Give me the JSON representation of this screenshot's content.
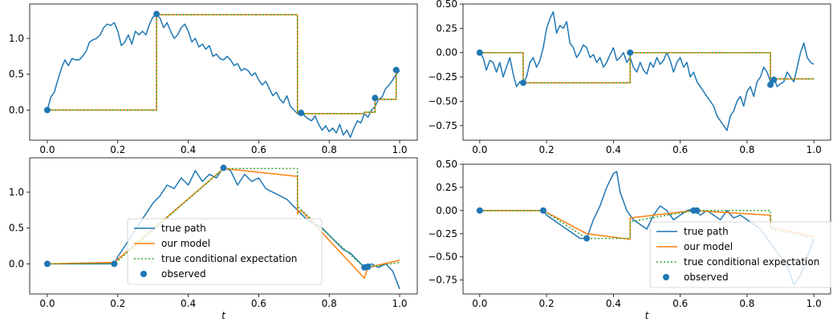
{
  "colors": {
    "true_path": "#1f77b4",
    "model": "#ff7f0e",
    "cond_exp": "#2ca02c",
    "observed": "#1f77b4"
  },
  "chart_data": [
    {
      "type": "line",
      "xlabel": "",
      "xlim": [
        -0.05,
        1.05
      ],
      "ylim": [
        -0.42,
        1.48
      ],
      "xticks": [
        "0.0",
        "0.2",
        "0.4",
        "0.6",
        "0.8",
        "1.0"
      ],
      "xtick_values": [
        0,
        0.2,
        0.4,
        0.6,
        0.8,
        1.0
      ],
      "yticks": [
        "0.0",
        "0.5",
        "1.0"
      ],
      "ytick_values": [
        0,
        0.5,
        1.0
      ],
      "legend": null,
      "series": [
        {
          "name": "true path",
          "x": [
            0,
            0.01,
            0.02,
            0.03,
            0.04,
            0.05,
            0.06,
            0.07,
            0.08,
            0.09,
            0.1,
            0.11,
            0.12,
            0.13,
            0.14,
            0.15,
            0.16,
            0.17,
            0.18,
            0.19,
            0.2,
            0.21,
            0.22,
            0.23,
            0.24,
            0.25,
            0.26,
            0.27,
            0.28,
            0.29,
            0.3,
            0.31,
            0.32,
            0.33,
            0.34,
            0.35,
            0.36,
            0.37,
            0.38,
            0.39,
            0.4,
            0.41,
            0.42,
            0.43,
            0.44,
            0.45,
            0.46,
            0.47,
            0.48,
            0.49,
            0.5,
            0.51,
            0.52,
            0.53,
            0.54,
            0.55,
            0.56,
            0.57,
            0.58,
            0.59,
            0.6,
            0.61,
            0.62,
            0.63,
            0.64,
            0.65,
            0.66,
            0.67,
            0.68,
            0.69,
            0.7,
            0.71,
            0.72,
            0.73,
            0.74,
            0.75,
            0.76,
            0.77,
            0.78,
            0.79,
            0.8,
            0.81,
            0.82,
            0.83,
            0.84,
            0.85,
            0.86,
            0.87,
            0.88,
            0.89,
            0.9,
            0.91,
            0.92,
            0.93,
            0.94,
            0.95,
            0.96,
            0.97,
            0.98,
            0.99,
            1.0
          ],
          "y": [
            0,
            0.18,
            0.25,
            0.42,
            0.58,
            0.7,
            0.62,
            0.72,
            0.7,
            0.7,
            0.75,
            0.82,
            0.95,
            0.98,
            1.0,
            1.05,
            1.15,
            1.2,
            1.18,
            1.22,
            1.1,
            0.9,
            0.95,
            1.05,
            0.92,
            1.1,
            1.05,
            1.1,
            1.05,
            1.2,
            1.3,
            1.33,
            1.28,
            1.15,
            1.22,
            1.1,
            1.0,
            1.05,
            1.15,
            1.2,
            1.1,
            0.95,
            1.0,
            0.88,
            0.92,
            0.85,
            0.9,
            0.75,
            0.78,
            0.72,
            0.7,
            0.75,
            0.7,
            0.62,
            0.65,
            0.55,
            0.58,
            0.55,
            0.48,
            0.52,
            0.42,
            0.35,
            0.4,
            0.3,
            0.2,
            0.25,
            0.15,
            0.1,
            0.2,
            0.05,
            0.0,
            -0.05,
            0.0,
            -0.08,
            -0.12,
            -0.15,
            -0.08,
            -0.2,
            -0.28,
            -0.22,
            -0.3,
            -0.25,
            -0.32,
            -0.2,
            -0.35,
            -0.28,
            -0.38,
            -0.25,
            -0.15,
            -0.18,
            -0.05,
            -0.1,
            0.0,
            0.05,
            0.15,
            0.18,
            0.3,
            0.35,
            0.42,
            0.5,
            0.55
          ]
        },
        {
          "name": "our model",
          "x": [
            0,
            0.31,
            0.31,
            0.71,
            0.71,
            0.9,
            0.9,
            0.93,
            0.93,
            0.99,
            0.99
          ],
          "y": [
            0,
            0,
            1.33,
            1.33,
            -0.05,
            -0.05,
            -0.03,
            -0.03,
            0.15,
            0.15,
            0.56
          ]
        },
        {
          "name": "true conditional expectation",
          "x": [
            0,
            0.31,
            0.31,
            0.71,
            0.71,
            0.9,
            0.9,
            0.93,
            0.93,
            0.99,
            0.99
          ],
          "y": [
            0,
            0,
            1.33,
            1.33,
            -0.05,
            -0.05,
            -0.03,
            -0.03,
            0.15,
            0.15,
            0.56
          ]
        },
        {
          "name": "observed",
          "x": [
            0,
            0.31,
            0.72,
            0.93,
            0.99
          ],
          "y": [
            0,
            1.34,
            -0.04,
            0.17,
            0.56
          ]
        }
      ]
    },
    {
      "type": "line",
      "xlabel": "",
      "xlim": [
        -0.05,
        1.05
      ],
      "ylim": [
        -0.9,
        0.5
      ],
      "xticks": [
        "0.0",
        "0.2",
        "0.4",
        "0.6",
        "0.8",
        "1.0"
      ],
      "xtick_values": [
        0,
        0.2,
        0.4,
        0.6,
        0.8,
        1.0
      ],
      "yticks": [
        "0.50",
        "0.25",
        "0.00",
        "−0.25",
        "−0.50",
        "−0.75"
      ],
      "ytick_values": [
        0.5,
        0.25,
        0,
        -0.25,
        -0.5,
        -0.75
      ],
      "legend": null,
      "series": [
        {
          "name": "true path",
          "x": [
            0,
            0.01,
            0.02,
            0.03,
            0.04,
            0.05,
            0.06,
            0.07,
            0.08,
            0.09,
            0.1,
            0.11,
            0.12,
            0.13,
            0.14,
            0.15,
            0.16,
            0.17,
            0.18,
            0.19,
            0.2,
            0.21,
            0.22,
            0.23,
            0.24,
            0.25,
            0.26,
            0.27,
            0.28,
            0.29,
            0.3,
            0.31,
            0.32,
            0.33,
            0.34,
            0.35,
            0.36,
            0.37,
            0.38,
            0.39,
            0.4,
            0.41,
            0.42,
            0.43,
            0.44,
            0.45,
            0.46,
            0.47,
            0.48,
            0.49,
            0.5,
            0.51,
            0.52,
            0.53,
            0.54,
            0.55,
            0.56,
            0.57,
            0.58,
            0.59,
            0.6,
            0.61,
            0.62,
            0.63,
            0.64,
            0.65,
            0.66,
            0.67,
            0.68,
            0.69,
            0.7,
            0.71,
            0.72,
            0.73,
            0.74,
            0.75,
            0.76,
            0.77,
            0.78,
            0.79,
            0.8,
            0.81,
            0.82,
            0.83,
            0.84,
            0.85,
            0.86,
            0.87,
            0.88,
            0.89,
            0.9,
            0.91,
            0.92,
            0.93,
            0.94,
            0.95,
            0.96,
            0.97,
            0.98,
            0.99,
            1.0
          ],
          "y": [
            0,
            -0.05,
            -0.18,
            -0.08,
            -0.1,
            -0.2,
            -0.1,
            -0.25,
            -0.15,
            -0.05,
            -0.22,
            -0.35,
            -0.3,
            -0.32,
            -0.25,
            -0.1,
            -0.05,
            -0.15,
            -0.08,
            0.05,
            0.25,
            0.35,
            0.42,
            0.2,
            0.28,
            0.25,
            0.32,
            0.1,
            0.05,
            -0.05,
            0.0,
            0.08,
            0.05,
            -0.05,
            -0.02,
            -0.1,
            -0.05,
            -0.15,
            -0.1,
            -0.02,
            0.05,
            -0.08,
            -0.05,
            0.0,
            -0.1,
            -0.05,
            -0.15,
            -0.2,
            -0.1,
            -0.18,
            -0.22,
            -0.1,
            -0.15,
            -0.05,
            -0.12,
            -0.08,
            0.0,
            -0.08,
            -0.2,
            -0.1,
            -0.05,
            -0.15,
            -0.1,
            -0.25,
            -0.2,
            -0.3,
            -0.35,
            -0.4,
            -0.45,
            -0.5,
            -0.55,
            -0.65,
            -0.7,
            -0.75,
            -0.8,
            -0.65,
            -0.6,
            -0.5,
            -0.45,
            -0.55,
            -0.4,
            -0.35,
            -0.45,
            -0.3,
            -0.25,
            -0.15,
            -0.2,
            -0.3,
            -0.25,
            -0.35,
            -0.32,
            -0.3,
            -0.2,
            -0.25,
            -0.3,
            -0.15,
            0.0,
            0.1,
            -0.05,
            -0.1,
            -0.12
          ]
        },
        {
          "name": "our model",
          "x": [
            0,
            0.13,
            0.13,
            0.45,
            0.45,
            0.87,
            0.87,
            1.0
          ],
          "y": [
            0,
            0,
            -0.31,
            -0.31,
            0.0,
            0.0,
            -0.27,
            -0.27
          ]
        },
        {
          "name": "true conditional expectation",
          "x": [
            0,
            0.13,
            0.13,
            0.45,
            0.45,
            0.87,
            0.87,
            1.0
          ],
          "y": [
            0,
            0,
            -0.31,
            -0.31,
            0.0,
            0.0,
            -0.27,
            -0.27
          ]
        },
        {
          "name": "observed",
          "x": [
            0,
            0.13,
            0.45,
            0.87,
            0.88
          ],
          "y": [
            0,
            -0.31,
            0.0,
            -0.33,
            -0.28
          ]
        }
      ]
    },
    {
      "type": "line",
      "xlabel": "t",
      "xlim": [
        -0.05,
        1.05
      ],
      "ylim": [
        -0.42,
        1.48
      ],
      "xticks": [
        "0.0",
        "0.2",
        "0.4",
        "0.6",
        "0.8",
        "1.0"
      ],
      "xtick_values": [
        0,
        0.2,
        0.4,
        0.6,
        0.8,
        1.0
      ],
      "yticks": [
        "0.0",
        "0.5",
        "1.0"
      ],
      "ytick_values": [
        0,
        0.5,
        1.0
      ],
      "legend": "center",
      "legend_entries": [
        "true path",
        "our model",
        "true conditional expectation",
        "observed"
      ],
      "series": [
        {
          "name": "true path",
          "x": [
            0,
            0.19,
            0.2,
            0.22,
            0.24,
            0.26,
            0.28,
            0.3,
            0.32,
            0.34,
            0.36,
            0.38,
            0.4,
            0.42,
            0.44,
            0.46,
            0.48,
            0.5,
            0.52,
            0.54,
            0.56,
            0.58,
            0.6,
            0.62,
            0.64,
            0.66,
            0.68,
            0.7,
            0.72,
            0.74,
            0.76,
            0.78,
            0.8,
            0.82,
            0.84,
            0.86,
            0.88,
            0.9,
            0.92,
            0.94,
            0.96,
            0.98,
            1.0
          ],
          "y": [
            0,
            0,
            0.1,
            0.25,
            0.4,
            0.55,
            0.7,
            0.85,
            0.95,
            1.1,
            1.05,
            1.2,
            1.1,
            1.3,
            1.15,
            1.25,
            1.2,
            1.35,
            1.3,
            1.1,
            1.25,
            1.15,
            1.2,
            1.05,
            1.0,
            0.95,
            0.9,
            0.8,
            0.7,
            0.6,
            0.55,
            0.5,
            0.4,
            0.3,
            0.2,
            0.15,
            0.05,
            -0.05,
            0.0,
            -0.05,
            0.0,
            -0.1,
            -0.35
          ]
        },
        {
          "name": "our model",
          "x": [
            0,
            0.19,
            0.5,
            0.71,
            0.71,
            0.72,
            0.9,
            0.91,
            1.0
          ],
          "y": [
            0,
            0.02,
            1.33,
            1.22,
            0.7,
            0.75,
            -0.2,
            -0.05,
            0.05
          ]
        },
        {
          "name": "true conditional expectation",
          "x": [
            0,
            0.19,
            0.5,
            0.71,
            0.71,
            0.9,
            0.91,
            1.0
          ],
          "y": [
            0,
            0,
            1.33,
            1.33,
            0.8,
            -0.05,
            -0.05,
            0.02
          ]
        },
        {
          "name": "observed",
          "x": [
            0,
            0.19,
            0.5,
            0.9,
            0.91
          ],
          "y": [
            0,
            0,
            1.34,
            -0.05,
            -0.04
          ]
        }
      ]
    },
    {
      "type": "line",
      "xlabel": "t",
      "xlim": [
        -0.05,
        1.05
      ],
      "ylim": [
        -0.9,
        0.5
      ],
      "xticks": [
        "0.0",
        "0.2",
        "0.4",
        "0.6",
        "0.8",
        "1.0"
      ],
      "xtick_values": [
        0,
        0.2,
        0.4,
        0.6,
        0.8,
        1.0
      ],
      "yticks": [
        "0.50",
        "0.25",
        "0.00",
        "−0.25",
        "−0.50",
        "−0.75"
      ],
      "ytick_values": [
        0.5,
        0.25,
        0,
        -0.25,
        -0.5,
        -0.75
      ],
      "legend": "lower right",
      "legend_entries": [
        "true path",
        "our model",
        "true conditional expectation",
        "observed"
      ],
      "series": [
        {
          "name": "true path",
          "x": [
            0,
            0.19,
            0.2,
            0.22,
            0.24,
            0.26,
            0.28,
            0.3,
            0.32,
            0.34,
            0.36,
            0.38,
            0.4,
            0.41,
            0.42,
            0.44,
            0.46,
            0.48,
            0.5,
            0.52,
            0.54,
            0.56,
            0.58,
            0.6,
            0.62,
            0.64,
            0.66,
            0.68,
            0.7,
            0.72,
            0.74,
            0.76,
            0.78,
            0.8,
            0.82,
            0.84,
            0.86,
            0.88,
            0.9,
            0.92,
            0.94,
            0.96,
            0.98,
            1.0
          ],
          "y": [
            0,
            0,
            -0.05,
            -0.1,
            -0.15,
            -0.2,
            -0.25,
            -0.3,
            -0.3,
            -0.1,
            0.05,
            0.25,
            0.4,
            0.42,
            0.2,
            0.0,
            -0.1,
            -0.15,
            -0.2,
            -0.05,
            0.05,
            0.0,
            -0.1,
            -0.05,
            0.0,
            0.02,
            -0.05,
            0.0,
            -0.05,
            -0.1,
            0.0,
            -0.08,
            -0.05,
            -0.1,
            -0.15,
            -0.2,
            -0.3,
            -0.4,
            -0.5,
            -0.6,
            -0.8,
            -0.7,
            -0.5,
            -0.3
          ]
        },
        {
          "name": "our model",
          "x": [
            0,
            0.19,
            0.32,
            0.45,
            0.45,
            0.64,
            0.87,
            0.87,
            1.0
          ],
          "y": [
            0,
            0,
            -0.25,
            -0.31,
            -0.08,
            0.0,
            -0.05,
            -0.18,
            -0.28
          ]
        },
        {
          "name": "true conditional expectation",
          "x": [
            0,
            0.19,
            0.32,
            0.32,
            0.45,
            0.45,
            0.64,
            0.87,
            0.87,
            1.0
          ],
          "y": [
            0,
            0,
            -0.3,
            -0.3,
            -0.3,
            -0.12,
            0.0,
            0.0,
            -0.2,
            -0.3
          ]
        },
        {
          "name": "observed",
          "x": [
            0,
            0.19,
            0.32,
            0.64,
            0.65
          ],
          "y": [
            0,
            0,
            -0.3,
            0.0,
            0.0
          ]
        }
      ]
    }
  ]
}
